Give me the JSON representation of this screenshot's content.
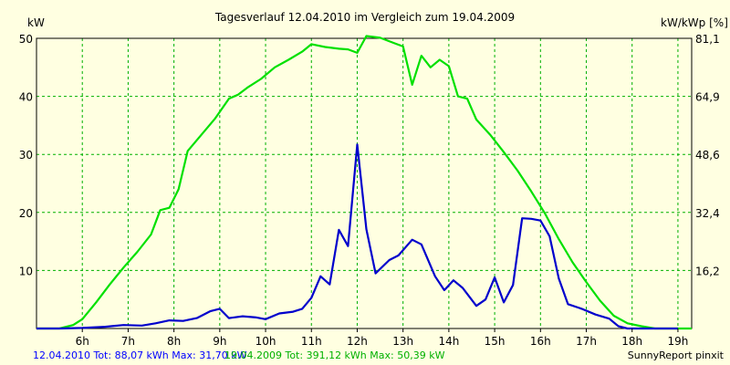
{
  "chart_data": {
    "type": "line",
    "title": "Tagesverlauf 12.04.2010 im Vergleich zum 19.04.2009",
    "ylabel_left": "kW",
    "ylabel_right": "kW/kWp [%]",
    "x_ticks": [
      "6h",
      "7h",
      "8h",
      "9h",
      "10h",
      "11h",
      "12h",
      "13h",
      "14h",
      "15h",
      "16h",
      "17h",
      "18h",
      "19h"
    ],
    "y_left_ticks": [
      10,
      20,
      30,
      40,
      50
    ],
    "y_right_ticks": [
      "16,2",
      "32,4",
      "48,6",
      "64,9",
      "81,1"
    ],
    "xlim": [
      5.0,
      19.3
    ],
    "ylim": [
      0,
      50
    ],
    "grid": true,
    "colors": {
      "background": "#ffffe1",
      "plot": "#ffffe1",
      "grid": "#00b000",
      "series1": "#0000ff",
      "series2": "#00e000"
    },
    "series": [
      {
        "name": "12.04.2010",
        "color": "#0000cc",
        "points": [
          [
            5.0,
            0
          ],
          [
            5.5,
            0
          ],
          [
            6.0,
            0.1
          ],
          [
            6.5,
            0.3
          ],
          [
            6.9,
            0.6
          ],
          [
            7.3,
            0.5
          ],
          [
            7.6,
            0.9
          ],
          [
            7.9,
            1.4
          ],
          [
            8.2,
            1.3
          ],
          [
            8.5,
            1.8
          ],
          [
            8.8,
            3.0
          ],
          [
            9.0,
            3.4
          ],
          [
            9.2,
            1.8
          ],
          [
            9.5,
            2.1
          ],
          [
            9.8,
            1.9
          ],
          [
            10.0,
            1.6
          ],
          [
            10.3,
            2.6
          ],
          [
            10.6,
            2.9
          ],
          [
            10.8,
            3.4
          ],
          [
            11.0,
            5.3
          ],
          [
            11.2,
            9.0
          ],
          [
            11.4,
            7.6
          ],
          [
            11.6,
            17.0
          ],
          [
            11.8,
            14.2
          ],
          [
            12.0,
            31.7
          ],
          [
            12.2,
            17.1
          ],
          [
            12.4,
            9.5
          ],
          [
            12.7,
            11.8
          ],
          [
            12.9,
            12.6
          ],
          [
            13.2,
            15.3
          ],
          [
            13.4,
            14.5
          ],
          [
            13.7,
            9.0
          ],
          [
            13.9,
            6.6
          ],
          [
            14.1,
            8.3
          ],
          [
            14.3,
            7.0
          ],
          [
            14.6,
            3.9
          ],
          [
            14.8,
            5.0
          ],
          [
            15.0,
            8.8
          ],
          [
            15.2,
            4.5
          ],
          [
            15.4,
            7.5
          ],
          [
            15.6,
            19.0
          ],
          [
            15.8,
            18.9
          ],
          [
            16.0,
            18.6
          ],
          [
            16.2,
            15.9
          ],
          [
            16.4,
            8.6
          ],
          [
            16.6,
            4.2
          ],
          [
            16.9,
            3.4
          ],
          [
            17.2,
            2.4
          ],
          [
            17.5,
            1.7
          ],
          [
            17.7,
            0.4
          ],
          [
            17.9,
            0
          ],
          [
            18.5,
            0
          ],
          [
            19.0,
            0
          ]
        ]
      },
      {
        "name": "19.04.2009",
        "color": "#00e000",
        "points": [
          [
            5.0,
            0
          ],
          [
            5.5,
            0
          ],
          [
            5.8,
            0.6
          ],
          [
            6.0,
            1.6
          ],
          [
            6.3,
            4.5
          ],
          [
            6.6,
            7.6
          ],
          [
            6.9,
            10.5
          ],
          [
            7.2,
            13.2
          ],
          [
            7.5,
            16.2
          ],
          [
            7.7,
            20.4
          ],
          [
            7.9,
            20.8
          ],
          [
            8.1,
            24.0
          ],
          [
            8.3,
            30.6
          ],
          [
            8.6,
            33.4
          ],
          [
            8.9,
            36.2
          ],
          [
            9.2,
            39.6
          ],
          [
            9.4,
            40.3
          ],
          [
            9.6,
            41.5
          ],
          [
            9.9,
            43.0
          ],
          [
            10.2,
            45.0
          ],
          [
            10.5,
            46.3
          ],
          [
            10.8,
            47.7
          ],
          [
            11.0,
            49.0
          ],
          [
            11.3,
            48.5
          ],
          [
            11.6,
            48.2
          ],
          [
            11.8,
            48.1
          ],
          [
            12.0,
            47.5
          ],
          [
            12.2,
            50.4
          ],
          [
            12.5,
            50.1
          ],
          [
            12.8,
            49.2
          ],
          [
            13.0,
            48.6
          ],
          [
            13.2,
            42.0
          ],
          [
            13.4,
            47.0
          ],
          [
            13.6,
            45.0
          ],
          [
            13.8,
            46.3
          ],
          [
            14.0,
            45.2
          ],
          [
            14.2,
            40.0
          ],
          [
            14.4,
            39.6
          ],
          [
            14.6,
            36.0
          ],
          [
            14.9,
            33.4
          ],
          [
            15.2,
            30.4
          ],
          [
            15.5,
            27.2
          ],
          [
            15.8,
            23.6
          ],
          [
            16.1,
            19.8
          ],
          [
            16.4,
            15.4
          ],
          [
            16.7,
            11.4
          ],
          [
            17.0,
            8.0
          ],
          [
            17.3,
            4.8
          ],
          [
            17.6,
            2.2
          ],
          [
            17.9,
            0.9
          ],
          [
            18.2,
            0.4
          ],
          [
            18.5,
            0
          ],
          [
            19.3,
            0
          ]
        ]
      }
    ],
    "footer_left_1": "12.04.2010 Tot: 88,07 kWh Max: 31,70 kW",
    "footer_left_2": "19.04.2009 Tot: 391,12 kWh Max: 50,39 kW",
    "footer_right": "SunnyReport pinxit"
  }
}
